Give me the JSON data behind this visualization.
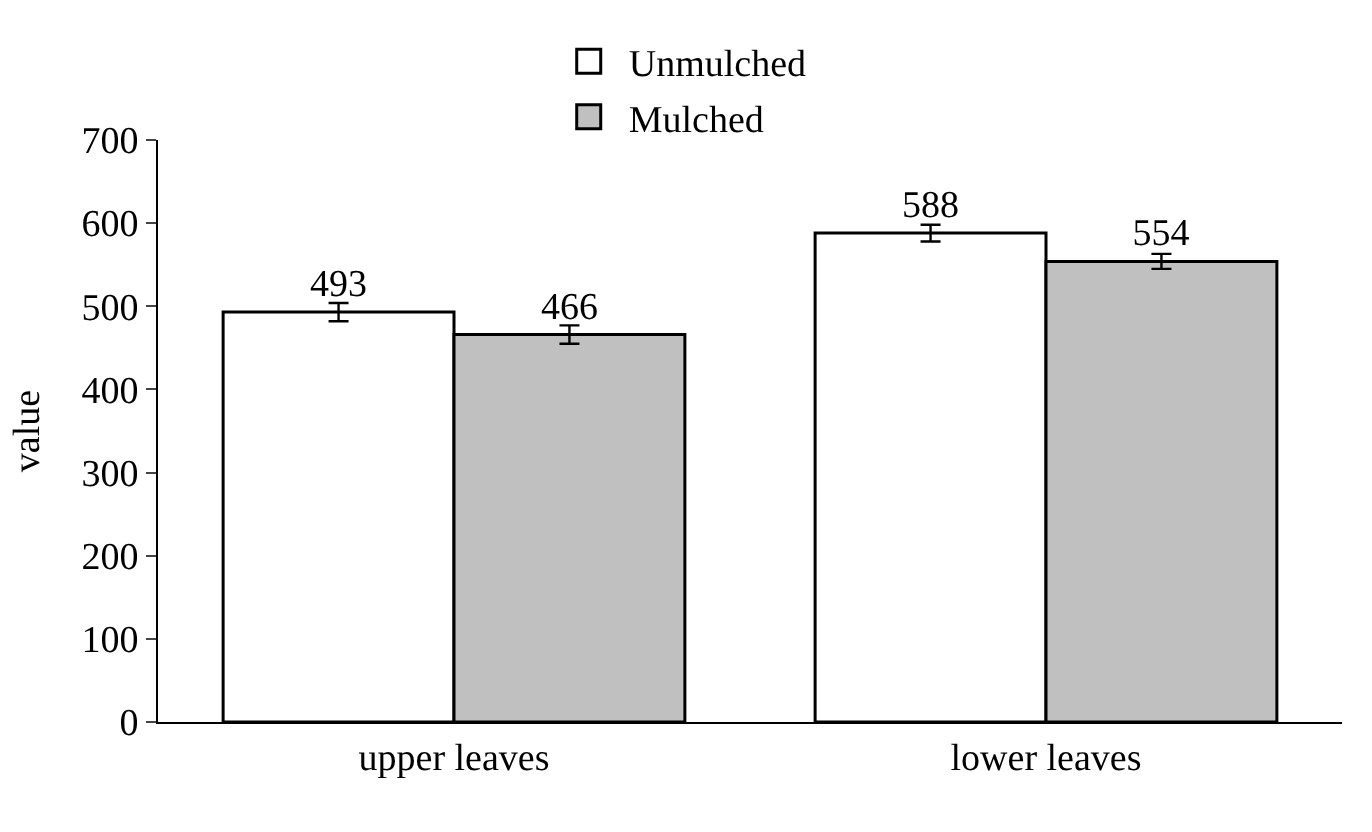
{
  "chart_data": {
    "type": "bar",
    "ylabel": "value",
    "categories": [
      "upper leaves",
      "lower leaves"
    ],
    "series": [
      {
        "name": "Unmulched",
        "color": "#ffffff",
        "values": [
          493,
          588
        ],
        "errors": [
          11,
          10
        ]
      },
      {
        "name": "Mulched",
        "color": "#c0c0c0",
        "values": [
          466,
          554
        ],
        "errors": [
          11,
          9
        ]
      }
    ],
    "ylim": [
      0,
      700
    ],
    "yticks": [
      0,
      100,
      200,
      300,
      400,
      500,
      600,
      700
    ],
    "data_labels": true,
    "legend": "top"
  }
}
